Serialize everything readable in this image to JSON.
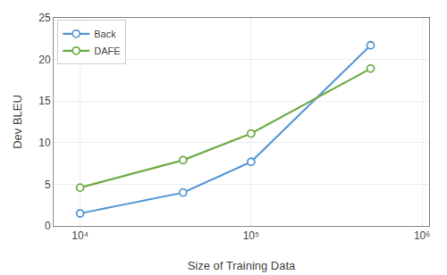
{
  "chart_data": {
    "type": "line",
    "x": [
      10000,
      40000,
      100000,
      500000
    ],
    "series": [
      {
        "name": "Back",
        "color": "#5b9bd5",
        "values": [
          1.5,
          4.0,
          7.7,
          21.7
        ]
      },
      {
        "name": "DAFE",
        "color": "#70ad47",
        "values": [
          4.6,
          7.9,
          11.1,
          18.9
        ]
      }
    ],
    "xlabel": "Size of Training Data",
    "ylabel": "Dev BLEU",
    "xlim": [
      7000,
      1100000
    ],
    "xticks": [
      {
        "value": 10000,
        "label": "10⁴"
      },
      {
        "value": 100000,
        "label": "10⁵"
      },
      {
        "value": 1000000,
        "label": "10⁶"
      }
    ],
    "ylim": [
      0,
      25
    ],
    "yticks": [
      0,
      5,
      10,
      15,
      20,
      25
    ],
    "log": "x",
    "grid": true,
    "legend": "upper left",
    "marker": "circle"
  }
}
